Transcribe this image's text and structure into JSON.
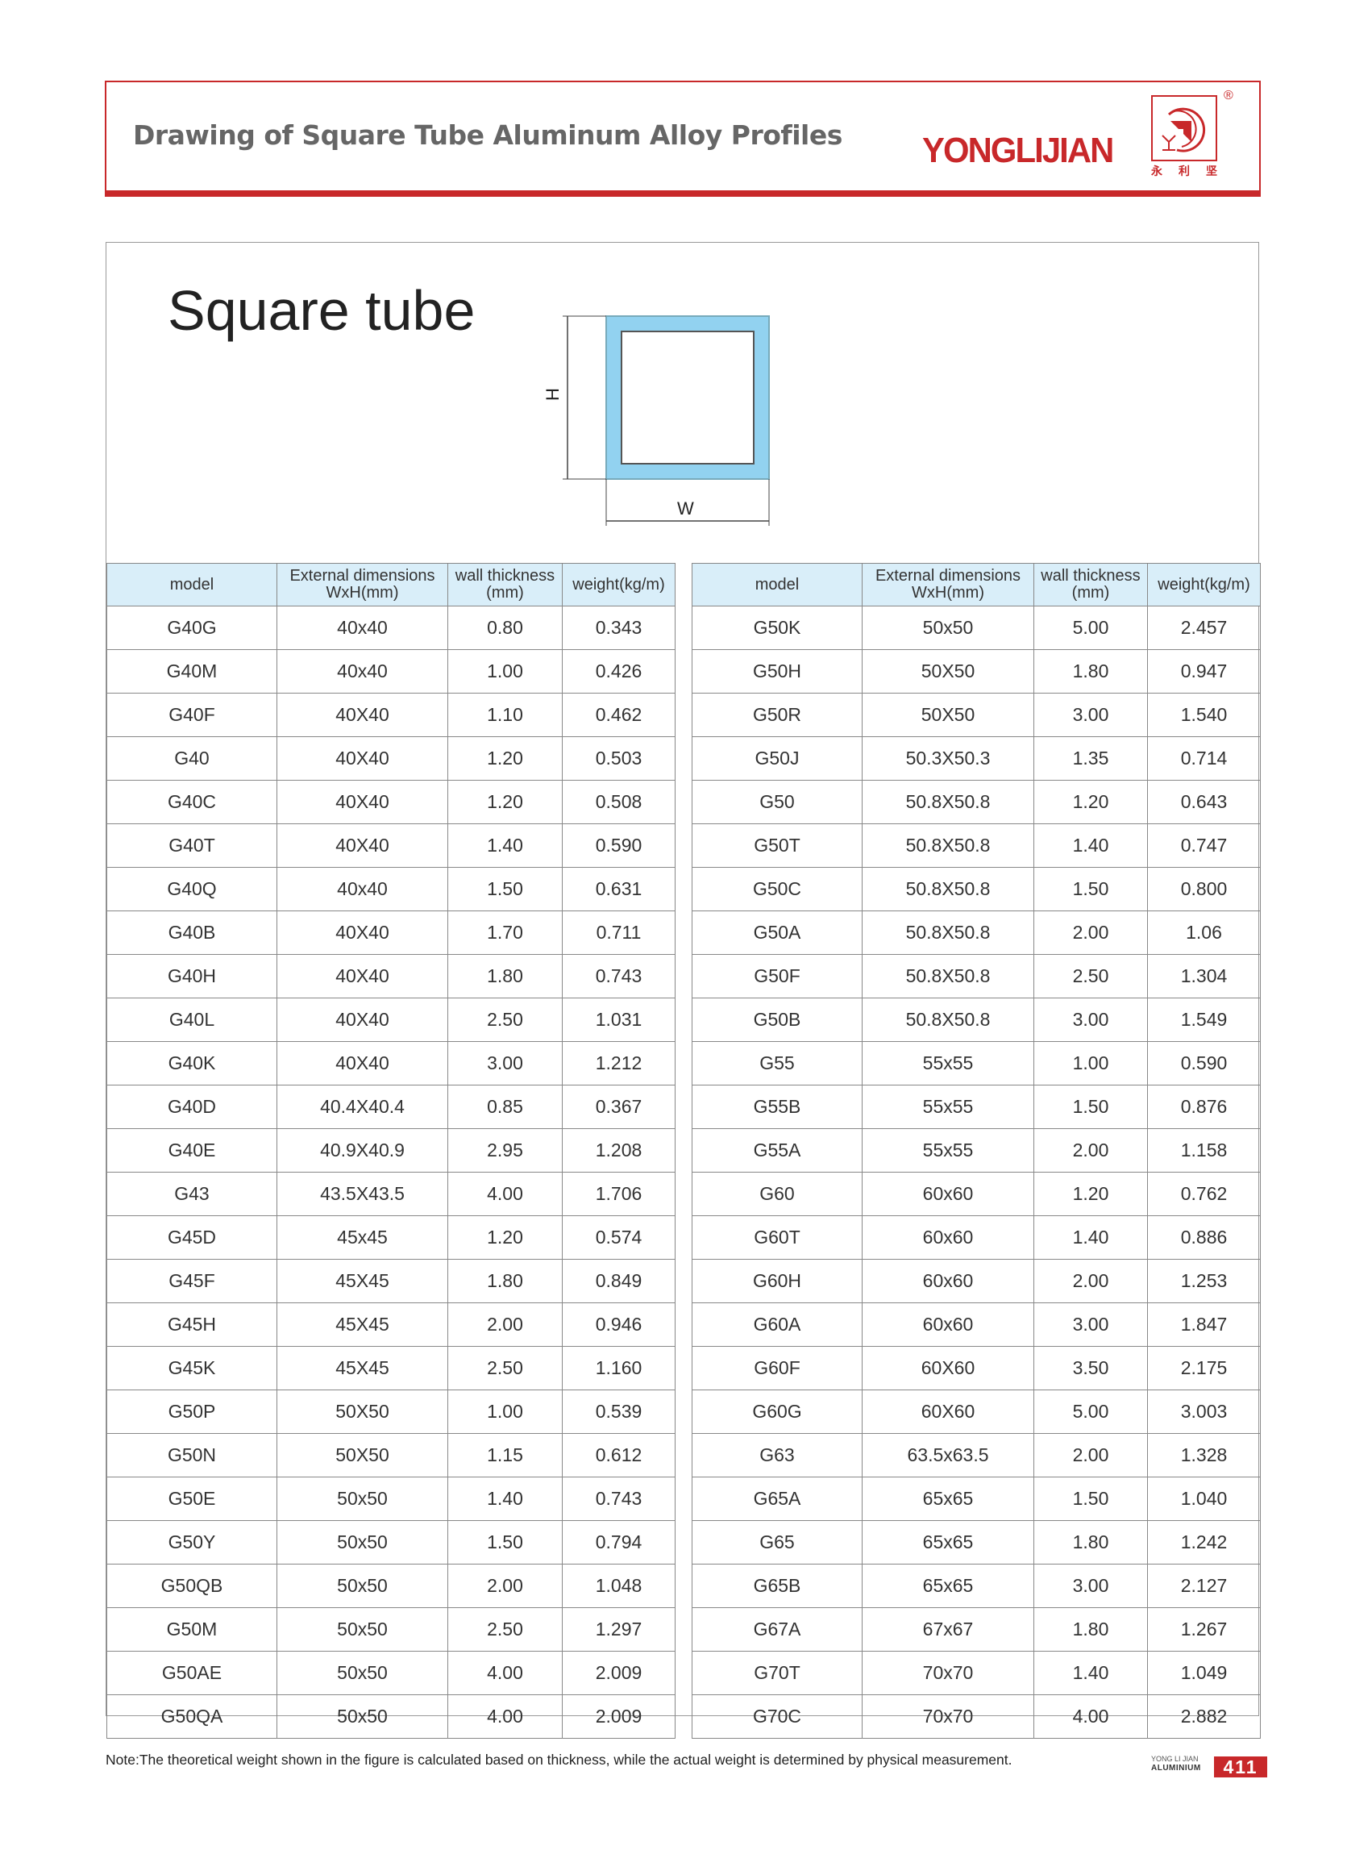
{
  "header": {
    "title": "Drawing of Square Tube Aluminum Alloy Profiles",
    "brand": "YONGLIJIAN",
    "logo_chinese": [
      "永",
      "利",
      "坚"
    ],
    "registered_mark": "®"
  },
  "main": {
    "title": "Square tube",
    "diagram": {
      "height_label": "H",
      "width_label": "W",
      "fill_color": "#92d2f0"
    },
    "columns": [
      "model",
      "External dimensions WxH(mm)",
      "wall thickness (mm)",
      "weight(kg/m)"
    ],
    "left_table": [
      [
        "G40G",
        "40x40",
        "0.80",
        "0.343"
      ],
      [
        "G40M",
        "40x40",
        "1.00",
        "0.426"
      ],
      [
        "G40F",
        "40X40",
        "1.10",
        "0.462"
      ],
      [
        "G40",
        "40X40",
        "1.20",
        "0.503"
      ],
      [
        "G40C",
        "40X40",
        "1.20",
        "0.508"
      ],
      [
        "G40T",
        "40X40",
        "1.40",
        "0.590"
      ],
      [
        "G40Q",
        "40x40",
        "1.50",
        "0.631"
      ],
      [
        "G40B",
        "40X40",
        "1.70",
        "0.711"
      ],
      [
        "G40H",
        "40X40",
        "1.80",
        "0.743"
      ],
      [
        "G40L",
        "40X40",
        "2.50",
        "1.031"
      ],
      [
        "G40K",
        "40X40",
        "3.00",
        "1.212"
      ],
      [
        "G40D",
        "40.4X40.4",
        "0.85",
        "0.367"
      ],
      [
        "G40E",
        "40.9X40.9",
        "2.95",
        "1.208"
      ],
      [
        "G43",
        "43.5X43.5",
        "4.00",
        "1.706"
      ],
      [
        "G45D",
        "45x45",
        "1.20",
        "0.574"
      ],
      [
        "G45F",
        "45X45",
        "1.80",
        "0.849"
      ],
      [
        "G45H",
        "45X45",
        "2.00",
        "0.946"
      ],
      [
        "G45K",
        "45X45",
        "2.50",
        "1.160"
      ],
      [
        "G50P",
        "50X50",
        "1.00",
        "0.539"
      ],
      [
        "G50N",
        "50X50",
        "1.15",
        "0.612"
      ],
      [
        "G50E",
        "50x50",
        "1.40",
        "0.743"
      ],
      [
        "G50Y",
        "50x50",
        "1.50",
        "0.794"
      ],
      [
        "G50QB",
        "50x50",
        "2.00",
        "1.048"
      ],
      [
        "G50M",
        "50x50",
        "2.50",
        "1.297"
      ],
      [
        "G50AE",
        "50x50",
        "4.00",
        "2.009"
      ],
      [
        "G50QA",
        "50x50",
        "4.00",
        "2.009"
      ]
    ],
    "right_table": [
      [
        "G50K",
        "50x50",
        "5.00",
        "2.457"
      ],
      [
        "G50H",
        "50X50",
        "1.80",
        "0.947"
      ],
      [
        "G50R",
        "50X50",
        "3.00",
        "1.540"
      ],
      [
        "G50J",
        "50.3X50.3",
        "1.35",
        "0.714"
      ],
      [
        "G50",
        "50.8X50.8",
        "1.20",
        "0.643"
      ],
      [
        "G50T",
        "50.8X50.8",
        "1.40",
        "0.747"
      ],
      [
        "G50C",
        "50.8X50.8",
        "1.50",
        "0.800"
      ],
      [
        "G50A",
        "50.8X50.8",
        "2.00",
        "1.06"
      ],
      [
        "G50F",
        "50.8X50.8",
        "2.50",
        "1.304"
      ],
      [
        "G50B",
        "50.8X50.8",
        "3.00",
        "1.549"
      ],
      [
        "G55",
        "55x55",
        "1.00",
        "0.590"
      ],
      [
        "G55B",
        "55x55",
        "1.50",
        "0.876"
      ],
      [
        "G55A",
        "55x55",
        "2.00",
        "1.158"
      ],
      [
        "G60",
        "60x60",
        "1.20",
        "0.762"
      ],
      [
        "G60T",
        "60x60",
        "1.40",
        "0.886"
      ],
      [
        "G60H",
        "60x60",
        "2.00",
        "1.253"
      ],
      [
        "G60A",
        "60x60",
        "3.00",
        "1.847"
      ],
      [
        "G60F",
        "60X60",
        "3.50",
        "2.175"
      ],
      [
        "G60G",
        "60X60",
        "5.00",
        "3.003"
      ],
      [
        "G63",
        "63.5x63.5",
        "2.00",
        "1.328"
      ],
      [
        "G65A",
        "65x65",
        "1.50",
        "1.040"
      ],
      [
        "G65",
        "65x65",
        "1.80",
        "1.242"
      ],
      [
        "G65B",
        "65x65",
        "3.00",
        "2.127"
      ],
      [
        "G67A",
        "67x67",
        "1.80",
        "1.267"
      ],
      [
        "G70T",
        "70x70",
        "1.40",
        "1.049"
      ],
      [
        "G70C",
        "70x70",
        "4.00",
        "2.882"
      ]
    ]
  },
  "footer": {
    "note": "Note:The theoretical weight shown in the figure is calculated based on thickness, while the actual weight is determined by physical measurement.",
    "brand_line1": "YONG LI JIAN",
    "brand_line2": "ALUMINIUM",
    "page_number": "411"
  },
  "colors": {
    "brand_red": "#c8282a",
    "header_blue": "#d9eef9"
  }
}
